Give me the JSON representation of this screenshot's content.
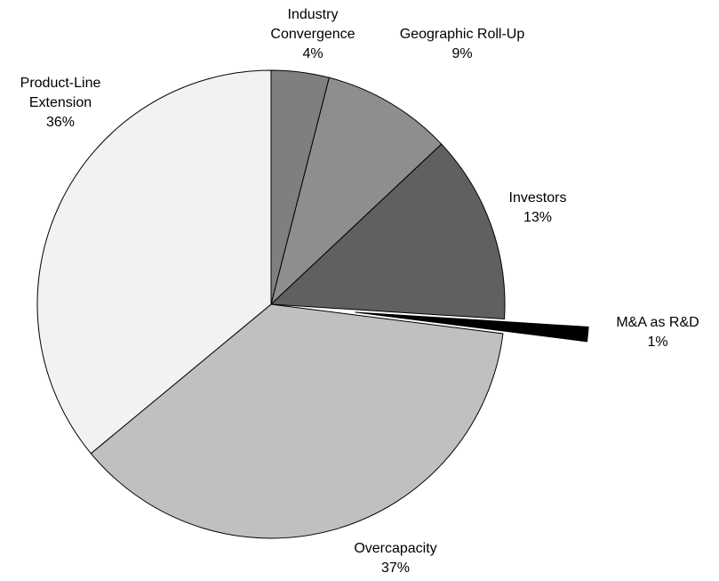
{
  "chart_data": {
    "type": "pie",
    "categories": [
      "Industry Convergence",
      "Geographic Roll-Up",
      "Investors",
      "M&A as R&D",
      "Overcapacity",
      "Product-Line Extension"
    ],
    "values": [
      4,
      9,
      13,
      1,
      37,
      36
    ],
    "value_labels": [
      "4%",
      "9%",
      "13%",
      "1%",
      "37%",
      "36%"
    ],
    "colors": [
      "#7f7f7f",
      "#8e8e8e",
      "#606060",
      "#000000",
      "#c0c0c0",
      "#f2f2f2"
    ],
    "exploded": [
      "M&A as R&D"
    ]
  }
}
